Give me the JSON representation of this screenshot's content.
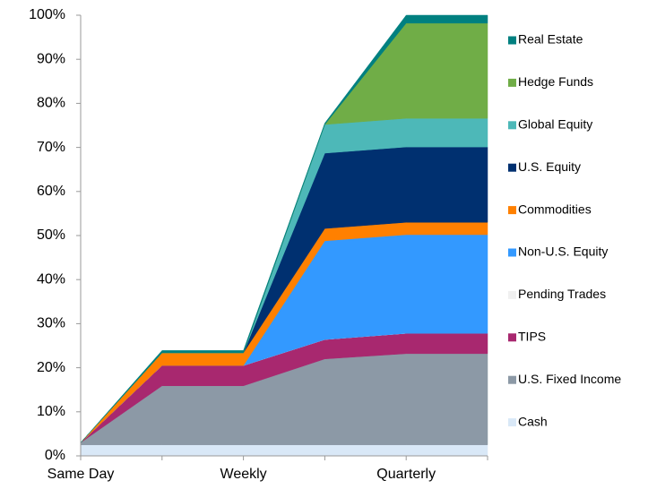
{
  "chart_data": {
    "type": "stacked_area",
    "categories": [
      "Same Day",
      null,
      "Weekly",
      null,
      "Quarterly",
      null
    ],
    "series": [
      {
        "name": "Cash",
        "color": "#d9e8f7",
        "values": [
          2.5,
          2.5,
          2.5,
          2.5,
          2.5,
          2.5
        ]
      },
      {
        "name": "U.S. Fixed Income",
        "color": "#8c99a6",
        "values": [
          0.5,
          13.4,
          13.4,
          19.5,
          20.7,
          20.7
        ]
      },
      {
        "name": "TIPS",
        "color": "#a8286f",
        "values": [
          0,
          4.6,
          4.6,
          4.4,
          4.6,
          4.6
        ]
      },
      {
        "name": "Pending Trades",
        "color": "#f0f0f0",
        "values": [
          0,
          0,
          0,
          0,
          0,
          0
        ]
      },
      {
        "name": "Non-U.S. Equity",
        "color": "#3399ff",
        "values": [
          0,
          0,
          0,
          22.4,
          22.4,
          22.4
        ]
      },
      {
        "name": "Commodities",
        "color": "#ff8000",
        "values": [
          0,
          2.9,
          2.9,
          2.8,
          2.8,
          2.8
        ]
      },
      {
        "name": "U.S. Equity",
        "color": "#003070",
        "values": [
          0,
          0,
          0,
          17.1,
          17.1,
          17.1
        ]
      },
      {
        "name": "Global Equity",
        "color": "#4db8b8",
        "values": [
          0,
          0,
          0,
          6.5,
          6.5,
          6.5
        ]
      },
      {
        "name": "Hedge Funds",
        "color": "#70ad47",
        "values": [
          0,
          0,
          0,
          0,
          21.6,
          21.6
        ]
      },
      {
        "name": "Real Estate",
        "color": "#008080",
        "values": [
          0,
          0.5,
          0.5,
          0.3,
          1.8,
          1.8
        ]
      }
    ],
    "ylim": [
      0,
      100
    ],
    "yticks": [
      {
        "value": 0,
        "label": "0%"
      },
      {
        "value": 10,
        "label": "10%"
      },
      {
        "value": 20,
        "label": "20%"
      },
      {
        "value": 30,
        "label": "30%"
      },
      {
        "value": 40,
        "label": "40%"
      },
      {
        "value": 50,
        "label": "50%"
      },
      {
        "value": 60,
        "label": "60%"
      },
      {
        "value": 70,
        "label": "70%"
      },
      {
        "value": 80,
        "label": "80%"
      },
      {
        "value": 90,
        "label": "90%"
      },
      {
        "value": 100,
        "label": "100%"
      }
    ],
    "legend": "right"
  }
}
